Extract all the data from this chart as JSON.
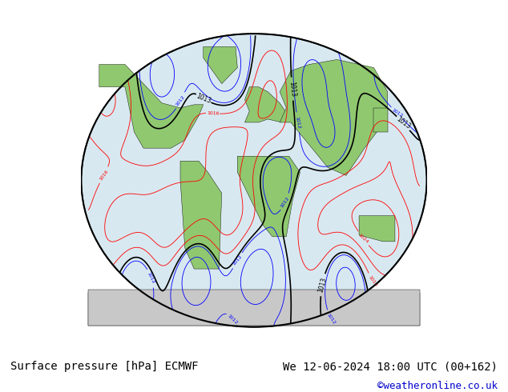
{
  "title_left": "Surface pressure [hPa] ECMWF",
  "title_right": "We 12-06-2024 18:00 UTC (00+162)",
  "credit": "©weatheronline.co.uk",
  "bg_color": "#ffffff",
  "map_bg": "#d8e8f0",
  "land_color": "#90c870",
  "glacier_color": "#c8c8c8",
  "contour_interval": 4,
  "p_min": 940,
  "p_max": 1044,
  "p_ref": 1013,
  "color_low": "#0000ff",
  "color_high": "#ff0000",
  "color_ref": "#000000",
  "font_size_title": 10,
  "font_size_credit": 9,
  "font_size_label": 7
}
